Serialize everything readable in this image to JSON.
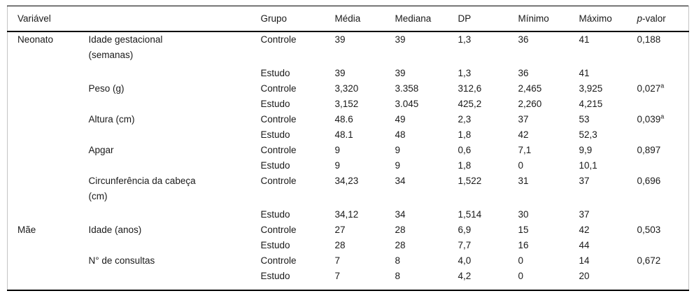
{
  "header": {
    "variavel": "Variável",
    "grupo": "Grupo",
    "media": "Média",
    "mediana": "Mediana",
    "dp": "DP",
    "minimo": "Mínimo",
    "maximo": "Máximo",
    "pvalor_italic": "p",
    "pvalor_rest": "-valor"
  },
  "rows": [
    {
      "section": "Neonato",
      "variable_line1": "Idade gestacional",
      "variable_line2": "(semanas)",
      "grupo": "Controle",
      "media": "39",
      "mediana": "39",
      "dp": "1,3",
      "minimo": "36",
      "maximo": "41",
      "pvalor": "0,188"
    },
    {
      "grupo": "Estudo",
      "media": "39",
      "mediana": "39",
      "dp": "1,3",
      "minimo": "36",
      "maximo": "41"
    },
    {
      "variable_line1": "Peso (g)",
      "grupo": "Controle",
      "media": "3,320",
      "mediana": "3.358",
      "dp": "312,6",
      "minimo": "2,465",
      "maximo": "3,925",
      "pvalor": "0,027",
      "pvalor_sup": "a"
    },
    {
      "grupo": "Estudo",
      "media": "3,152",
      "mediana": "3.045",
      "dp": "425,2",
      "minimo": "2,260",
      "maximo": "4,215"
    },
    {
      "variable_line1": "Altura (cm)",
      "grupo": "Controle",
      "media": "48.6",
      "mediana": "49",
      "dp": "2,3",
      "minimo": "37",
      "maximo": "53",
      "pvalor": "0,039",
      "pvalor_sup": "a"
    },
    {
      "grupo": "Estudo",
      "media": "48.1",
      "mediana": "48",
      "dp": "1,8",
      "minimo": "42",
      "maximo": "52,3"
    },
    {
      "variable_line1": "Apgar",
      "grupo": "Controle",
      "media": "9",
      "mediana": "9",
      "dp": "0,6",
      "minimo": "7,1",
      "maximo": "9,9",
      "pvalor": "0,897"
    },
    {
      "grupo": "Estudo",
      "media": "9",
      "mediana": "9",
      "dp": "1,8",
      "minimo": "0",
      "maximo": "10,1"
    },
    {
      "variable_line1": "Circunferência da cabeça",
      "variable_line2": "(cm)",
      "grupo": "Controle",
      "media": "34,23",
      "mediana": "34",
      "dp": "1,522",
      "minimo": "31",
      "maximo": "37",
      "pvalor": "0,696"
    },
    {
      "grupo": "Estudo",
      "media": "34,12",
      "mediana": "34",
      "dp": "1,514",
      "minimo": "30",
      "maximo": "37"
    },
    {
      "section": "Mãe",
      "variable_line1": "Idade (anos)",
      "grupo": "Controle",
      "media": "27",
      "mediana": "28",
      "dp": "6,9",
      "minimo": "15",
      "maximo": "42",
      "pvalor": "0,503"
    },
    {
      "grupo": "Estudo",
      "media": "28",
      "mediana": "28",
      "dp": "7,7",
      "minimo": "16",
      "maximo": "44"
    },
    {
      "variable_line1": "N° de consultas",
      "grupo": "Controle",
      "media": "7",
      "mediana": "8",
      "dp": "4,0",
      "minimo": "0",
      "maximo": "14",
      "pvalor": "0,672"
    },
    {
      "grupo": "Estudo",
      "media": "7",
      "mediana": "8",
      "dp": "4,2",
      "minimo": "0",
      "maximo": "20"
    }
  ]
}
